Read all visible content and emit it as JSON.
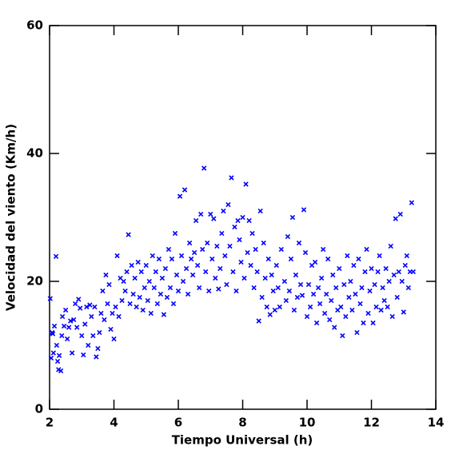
{
  "chart_data": {
    "type": "scatter",
    "xlabel": "Tiempo Universal (h)",
    "ylabel": "Velocidad del viento (Km/h)",
    "xlim": [
      2,
      14
    ],
    "ylim": [
      0,
      60
    ],
    "xticks": [
      2,
      4,
      6,
      8,
      10,
      12,
      14
    ],
    "yticks": [
      0,
      20,
      40,
      60
    ],
    "color": "#0000ff",
    "x": [
      2.02,
      2.05,
      2.08,
      2.1,
      2.12,
      2.15,
      2.2,
      2.22,
      2.25,
      2.28,
      2.3,
      2.35,
      2.38,
      2.4,
      2.45,
      2.5,
      2.55,
      2.6,
      2.65,
      2.7,
      2.75,
      2.8,
      2.85,
      2.9,
      2.95,
      3.0,
      3.05,
      3.1,
      3.15,
      3.2,
      3.25,
      3.3,
      3.35,
      3.4,
      3.45,
      3.5,
      3.55,
      3.6,
      3.65,
      3.7,
      3.75,
      3.8,
      3.85,
      3.9,
      3.95,
      4.0,
      4.05,
      4.1,
      4.15,
      4.2,
      4.25,
      4.3,
      4.35,
      4.4,
      4.45,
      4.5,
      4.55,
      4.6,
      4.65,
      4.7,
      4.75,
      4.8,
      4.85,
      4.9,
      4.95,
      5.0,
      5.05,
      5.1,
      5.15,
      5.2,
      5.25,
      5.3,
      5.35,
      5.4,
      5.45,
      5.5,
      5.55,
      5.6,
      5.65,
      5.7,
      5.75,
      5.8,
      5.85,
      5.9,
      5.95,
      6.0,
      6.05,
      6.1,
      6.15,
      6.2,
      6.25,
      6.3,
      6.35,
      6.4,
      6.45,
      6.5,
      6.55,
      6.6,
      6.65,
      6.7,
      6.75,
      6.8,
      6.85,
      6.9,
      6.95,
      7.0,
      7.05,
      7.1,
      7.15,
      7.2,
      7.25,
      7.3,
      7.35,
      7.4,
      7.45,
      7.5,
      7.55,
      7.6,
      7.65,
      7.7,
      7.75,
      7.8,
      7.85,
      7.9,
      7.95,
      8.0,
      8.05,
      8.1,
      8.15,
      8.2,
      8.25,
      8.3,
      8.35,
      8.4,
      8.45,
      8.5,
      8.55,
      8.6,
      8.65,
      8.7,
      8.75,
      8.8,
      8.85,
      8.9,
      8.95,
      9.0,
      9.05,
      9.1,
      9.15,
      9.2,
      9.3,
      9.35,
      9.4,
      9.45,
      9.5,
      9.55,
      9.6,
      9.65,
      9.7,
      9.75,
      9.8,
      9.85,
      9.9,
      9.95,
      10.0,
      10.05,
      10.1,
      10.15,
      10.2,
      10.25,
      10.3,
      10.35,
      10.4,
      10.45,
      10.5,
      10.55,
      10.6,
      10.65,
      10.7,
      10.75,
      10.8,
      10.85,
      10.9,
      10.95,
      11.0,
      11.05,
      11.1,
      11.15,
      11.2,
      11.25,
      11.3,
      11.35,
      11.4,
      11.45,
      11.5,
      11.55,
      11.6,
      11.65,
      11.7,
      11.75,
      11.8,
      11.85,
      11.9,
      11.95,
      12.0,
      12.05,
      12.1,
      12.15,
      12.2,
      12.25,
      12.3,
      12.35,
      12.4,
      12.45,
      12.5,
      12.55,
      12.6,
      12.65,
      12.7,
      12.75,
      12.8,
      12.85,
      12.9,
      12.95,
      13.0,
      13.05,
      13.1,
      13.15,
      13.2,
      13.25,
      13.3
    ],
    "values": [
      17.3,
      8,
      12,
      11.8,
      8.8,
      13,
      23.9,
      10,
      7.5,
      6.2,
      8.4,
      6,
      11.5,
      14.5,
      13,
      15.5,
      11,
      12.8,
      13.8,
      8.8,
      14,
      16.5,
      12.8,
      17.2,
      15.8,
      11.5,
      8.5,
      13.3,
      16,
      10,
      16.3,
      14.5,
      11.5,
      16,
      8.2,
      9.5,
      12,
      15,
      18.5,
      14,
      21,
      16.5,
      19.5,
      12.5,
      15,
      11,
      16,
      24,
      14.5,
      20.5,
      17,
      20,
      18.5,
      21.5,
      27.3,
      16.5,
      22.5,
      18,
      20.5,
      16,
      23,
      17.5,
      21.5,
      15.5,
      19,
      22.5,
      17,
      20,
      15,
      24,
      19,
      21.5,
      16.5,
      23.5,
      18,
      20.5,
      14.8,
      22,
      17.5,
      25,
      19,
      23.5,
      16.5,
      27.5,
      21,
      18.5,
      33.3,
      24,
      20,
      34.3,
      22,
      18,
      26,
      23.5,
      21,
      24.5,
      29.5,
      22.5,
      19,
      30.5,
      25,
      37.7,
      21.5,
      26,
      18.5,
      30.5,
      23.5,
      29.8,
      20.5,
      25.5,
      18.8,
      22,
      27.5,
      31,
      24,
      19.5,
      32,
      25.5,
      36.2,
      21.5,
      28.5,
      18.5,
      29.5,
      26.5,
      23,
      30,
      20.5,
      35.2,
      24.5,
      29.5,
      22.5,
      27.5,
      19,
      25,
      21.5,
      13.8,
      31,
      17.5,
      26,
      20.5,
      16,
      23.5,
      14.8,
      21,
      18.5,
      15.5,
      22.5,
      19,
      16,
      25,
      20,
      17,
      27,
      18.5,
      23.5,
      30,
      15.5,
      21,
      17.5,
      26,
      19.5,
      17.8,
      31.2,
      24.5,
      14.5,
      19.5,
      16,
      22.5,
      18,
      23,
      13.5,
      19,
      16.5,
      20.5,
      25,
      15,
      18,
      23.5,
      14,
      17,
      21,
      12.8,
      19,
      15.5,
      22,
      16,
      11.5,
      19.5,
      14.5,
      24,
      17.5,
      20,
      15.5,
      22.5,
      18,
      12,
      23.5,
      16.5,
      19,
      13.5,
      21.5,
      25,
      15,
      18.5,
      22,
      13.5,
      19.5,
      16,
      21.5,
      24,
      15.5,
      19,
      17,
      22,
      16,
      20,
      25.5,
      14.5,
      21,
      29.8,
      17.5,
      21.5,
      30.5,
      20,
      15.2,
      22.5,
      24,
      19,
      21.5,
      32.3,
      21.5
    ]
  }
}
